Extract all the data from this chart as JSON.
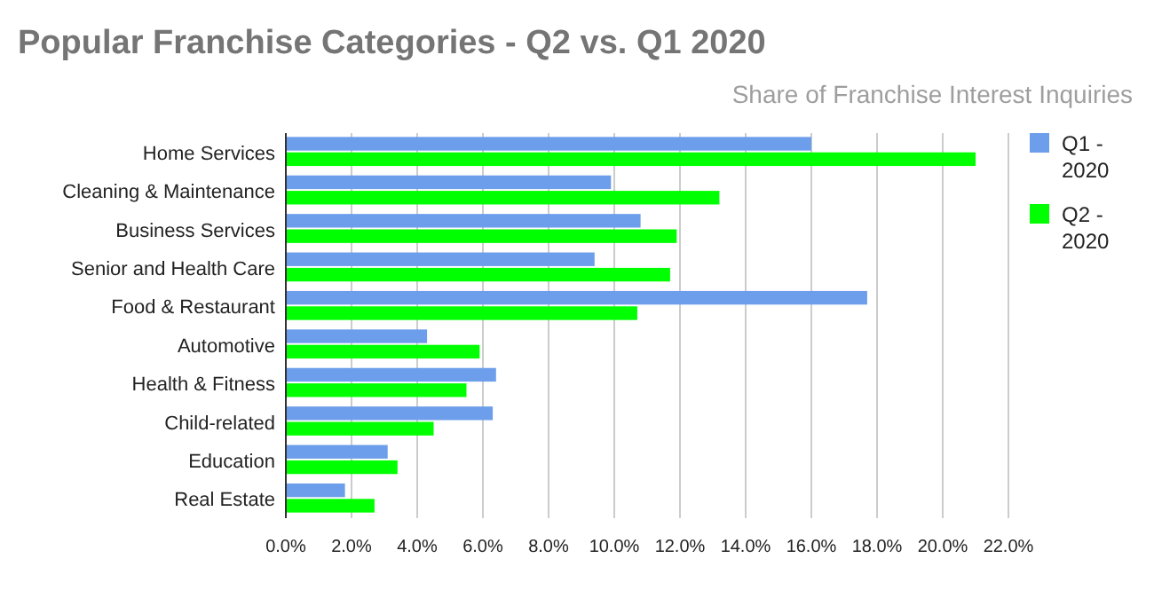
{
  "chart_data": {
    "type": "bar",
    "orientation": "horizontal",
    "title": "Popular Franchise Categories - Q2 vs. Q1 2020",
    "subtitle": "Share of Franchise Interest Inquiries",
    "categories": [
      "Home Services",
      "Cleaning & Maintenance",
      "Business Services",
      "Senior and Health Care",
      "Food & Restaurant",
      "Automotive",
      "Health & Fitness",
      "Child-related",
      "Education",
      "Real Estate"
    ],
    "series": [
      {
        "name": "Q1 - 2020",
        "color": "#6d9eeb",
        "values": [
          16.0,
          9.9,
          10.8,
          9.4,
          17.7,
          4.3,
          6.4,
          6.3,
          3.1,
          1.8
        ]
      },
      {
        "name": "Q2 - 2020",
        "color": "#00ff00",
        "values": [
          21.0,
          13.2,
          11.9,
          11.7,
          10.7,
          5.9,
          5.5,
          4.5,
          3.4,
          2.7
        ]
      }
    ],
    "xlim": [
      0,
      22
    ],
    "xticks": [
      {
        "value": 0,
        "label": "0.0%"
      },
      {
        "value": 2,
        "label": "2.0%"
      },
      {
        "value": 4,
        "label": "4.0%"
      },
      {
        "value": 6,
        "label": "6.0%"
      },
      {
        "value": 8,
        "label": "8.0%"
      },
      {
        "value": 10,
        "label": "10.0%"
      },
      {
        "value": 12,
        "label": "12.0%"
      },
      {
        "value": 14,
        "label": "14.0%"
      },
      {
        "value": 16,
        "label": "16.0%"
      },
      {
        "value": 18,
        "label": "18.0%"
      },
      {
        "value": 20,
        "label": "20.0%"
      },
      {
        "value": 22,
        "label": "22.0%"
      }
    ],
    "grid": "x",
    "legend": "top right"
  }
}
